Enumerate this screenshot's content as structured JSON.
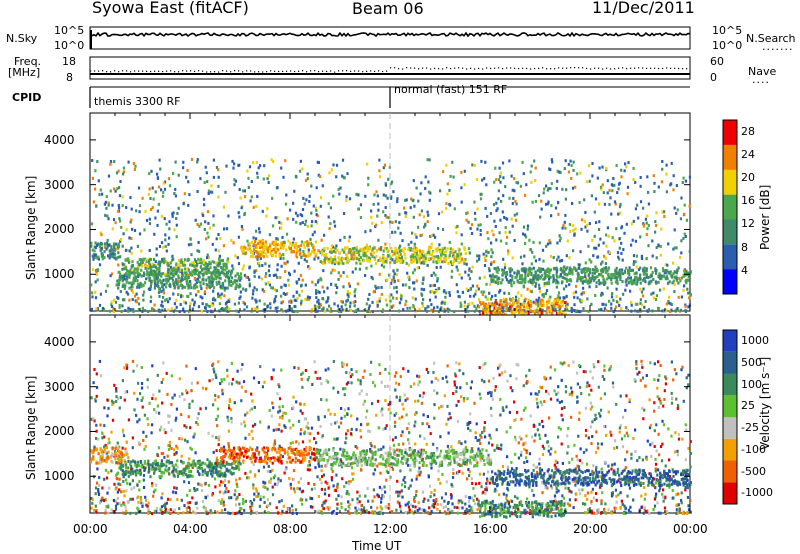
{
  "header": {
    "station": "Syowa East (fitACF)",
    "beam": "Beam 06",
    "date": "11/Dec/2011"
  },
  "top_panels": {
    "nsky_label": "N.Sky",
    "nsky_ticks": [
      "10^5",
      "10^0"
    ],
    "nsearch_label": "N.Search",
    "nsearch_ticks": [
      "10^5",
      "10^0"
    ],
    "freq_label_1": "Freq.",
    "freq_label_2": "[MHz]",
    "freq_ticks": [
      "18",
      "8"
    ],
    "nave_label": "Nave",
    "nave_ticks": [
      "60",
      "0"
    ],
    "cpid_label": "CPID",
    "cpid_segments": [
      {
        "label": "themis 3300 RF",
        "start_hour": 0,
        "end_hour": 12
      },
      {
        "label": "normal (fast) 151 RF",
        "start_hour": 12,
        "end_hour": 24
      }
    ]
  },
  "chart_data": [
    {
      "type": "heatmap",
      "title": "",
      "xlabel": "Time UT",
      "ylabel": "Slant Range [km]",
      "xlim": [
        0,
        24
      ],
      "ylim": [
        180,
        4600
      ],
      "x_ticks": [
        "00:00",
        "04:00",
        "08:00",
        "12:00",
        "16:00",
        "20:00",
        "00:00"
      ],
      "y_ticks": [
        1000,
        2000,
        3000,
        4000
      ],
      "colorbar": {
        "label": "Power [dB]",
        "range": [
          0,
          30
        ],
        "ticks": [
          4,
          8,
          12,
          16,
          20,
          24,
          28
        ],
        "colors": [
          "#0000ff",
          "#2a5fb0",
          "#3f8a6a",
          "#4aa84a",
          "#f0d000",
          "#f08000",
          "#ee0000"
        ]
      },
      "bands": [
        {
          "start_hour": 0.0,
          "end_hour": 1.2,
          "range_km": 1550,
          "value": 10
        },
        {
          "start_hour": 1.2,
          "end_hour": 5.5,
          "range_km": 1200,
          "value": 14
        },
        {
          "start_hour": 1.0,
          "end_hour": 6.0,
          "range_km": 900,
          "value": 12
        },
        {
          "start_hour": 6.0,
          "end_hour": 9.0,
          "range_km": 1600,
          "value": 22
        },
        {
          "start_hour": 9.0,
          "end_hour": 15.0,
          "range_km": 1450,
          "value": 18
        },
        {
          "start_hour": 15.5,
          "end_hour": 19.0,
          "range_km": 300,
          "value": 24
        },
        {
          "start_hour": 16.0,
          "end_hour": 24.0,
          "range_km": 1000,
          "value": 12
        }
      ]
    },
    {
      "type": "heatmap",
      "title": "",
      "xlabel": "Time UT",
      "ylabel": "Slant Range [km]",
      "xlim": [
        0,
        24
      ],
      "ylim": [
        180,
        4600
      ],
      "x_ticks": [
        "00:00",
        "04:00",
        "08:00",
        "12:00",
        "16:00",
        "20:00",
        "00:00"
      ],
      "y_ticks": [
        1000,
        2000,
        3000,
        4000
      ],
      "colorbar": {
        "label": "Velocity [m s⁻¹]",
        "ticks": [
          "1000",
          "500",
          "100",
          "25",
          "-25",
          "-100",
          "-500",
          "-1000"
        ],
        "colors": [
          "#2040c0",
          "#2a6090",
          "#3a8a5a",
          "#5cc030",
          "#c0c0c0",
          "#f0a000",
          "#f06000",
          "#e00000"
        ]
      },
      "bands": [
        {
          "start_hour": 0.0,
          "end_hour": 1.5,
          "range_km": 1500,
          "value": "-100"
        },
        {
          "start_hour": 1.0,
          "end_hour": 6.0,
          "range_km": 1200,
          "value": "100"
        },
        {
          "start_hour": 5.0,
          "end_hour": 9.0,
          "range_km": 1500,
          "value": "-500"
        },
        {
          "start_hour": 9.0,
          "end_hour": 16.0,
          "range_km": 1450,
          "value": "25"
        },
        {
          "start_hour": 15.5,
          "end_hour": 19.0,
          "range_km": 300,
          "value": "100"
        },
        {
          "start_hour": 16.0,
          "end_hour": 24.0,
          "range_km": 1000,
          "value": "500"
        }
      ]
    }
  ]
}
